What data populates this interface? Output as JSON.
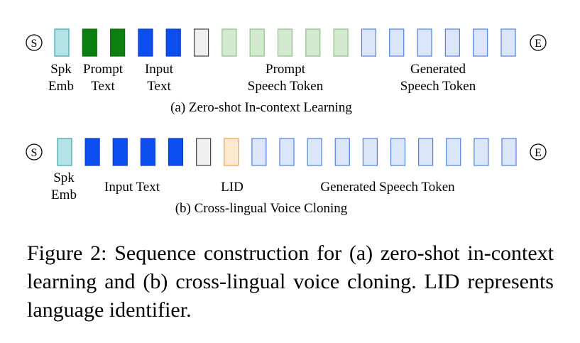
{
  "panels": [
    {
      "caption": "(a) Zero-shot In-context Learning",
      "start_symbol": "S",
      "end_symbol": "E",
      "tokens": [
        "spk",
        "prompt",
        "prompt",
        "input",
        "input",
        "sep",
        "pspeech",
        "pspeech",
        "pspeech",
        "pspeech",
        "pspeech",
        "gspeech",
        "gspeech",
        "gspeech",
        "gspeech",
        "gspeech",
        "gspeech"
      ],
      "labels": [
        {
          "line1": "Spk",
          "line2": "Emb"
        },
        {
          "line1": "Prompt",
          "line2": "Text"
        },
        {
          "line1": "Input",
          "line2": "Text"
        },
        {
          "line1": "Prompt",
          "line2": "Speech Token"
        },
        {
          "line1": "Generated",
          "line2": "Speech Token"
        }
      ]
    },
    {
      "caption": "(b) Cross-lingual Voice Cloning",
      "start_symbol": "S",
      "end_symbol": "E",
      "tokens": [
        "spk",
        "input",
        "input",
        "input",
        "input",
        "sep",
        "lid",
        "gspeech",
        "gspeech",
        "gspeech",
        "gspeech",
        "gspeech",
        "gspeech",
        "gspeech",
        "gspeech",
        "gspeech",
        "gspeech"
      ],
      "labels": [
        {
          "line1": "Spk",
          "line2": "Emb"
        },
        {
          "line1": "Input Text",
          "line2": ""
        },
        {
          "line1": "LID",
          "line2": ""
        },
        {
          "line1": "Generated Speech Token",
          "line2": ""
        }
      ]
    }
  ],
  "token_colors": {
    "spk": {
      "fill": "#b3e3e6",
      "stroke": "#3fa3aa"
    },
    "prompt": {
      "fill": "#0b7f10",
      "stroke": "#0b6a0e"
    },
    "input": {
      "fill": "#0d4ef0",
      "stroke": "#0a3dc0"
    },
    "sep": {
      "fill": "#efefef",
      "stroke": "#444444"
    },
    "pspeech": {
      "fill": "#d3e9cf",
      "stroke": "#8cc286"
    },
    "gspeech": {
      "fill": "#dbe6fa",
      "stroke": "#4f80dc"
    },
    "lid": {
      "fill": "#fde9cf",
      "stroke": "#e9a04c"
    }
  },
  "figure_caption": "Figure 2: Sequence construction for (a) zero-shot in-context learning and (b) cross-lingual voice cloning. LID represents language identifier."
}
